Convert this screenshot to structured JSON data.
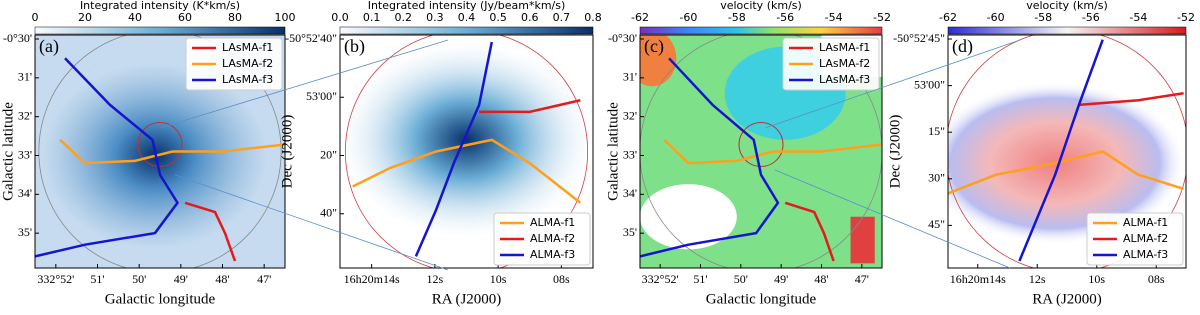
{
  "panels": [
    {
      "label": "(a)",
      "colorbar": {
        "title": "Integrated intensity (K*km/s)",
        "ticks": [
          "0",
          "20",
          "40",
          "60",
          "80",
          "100"
        ]
      },
      "xlabel": "Galactic longitude",
      "ylabel": "Galactic latitude",
      "xticks": [
        "332°52'",
        "51'",
        "50'",
        "49'",
        "48'",
        "47'"
      ],
      "yticks": [
        "-0°30'",
        "31'",
        "32'",
        "33'",
        "34'",
        "35'"
      ],
      "legend": [
        {
          "name": "LAsMA-f1",
          "color": "#e41a1c"
        },
        {
          "name": "LAsMA-f2",
          "color": "#ff9f1c"
        },
        {
          "name": "LAsMA-f3",
          "color": "#1515d0"
        }
      ]
    },
    {
      "label": "(b)",
      "colorbar": {
        "title": "Integrated intensity (Jy/beam*km/s)",
        "ticks": [
          "0.0",
          "0.1",
          "0.2",
          "0.3",
          "0.4",
          "0.5",
          "0.6",
          "0.7",
          "0.8"
        ]
      },
      "xlabel": "RA (J2000)",
      "ylabel": "Dec (J2000)",
      "xticks": [
        "16h20m14s",
        "12s",
        "10s",
        "08s"
      ],
      "yticks": [
        "-50°52'40\"",
        "53'00\"",
        "20\"",
        "40\""
      ],
      "legend": [
        {
          "name": "ALMA-f1",
          "color": "#ff9f1c"
        },
        {
          "name": "ALMA-f2",
          "color": "#e41a1c"
        },
        {
          "name": "ALMA-f3",
          "color": "#1515d0"
        }
      ]
    },
    {
      "label": "(c)",
      "colorbar": {
        "title": "velocity (km/s)",
        "ticks": [
          "-62",
          "-60",
          "-58",
          "-56",
          "-54",
          "-52"
        ]
      },
      "xlabel": "Galactic longitude",
      "ylabel": "Galactic latitude",
      "xticks": [
        "332°52'",
        "51'",
        "50'",
        "49'",
        "48'",
        "47'"
      ],
      "yticks": [
        "-0°30'",
        "31'",
        "32'",
        "33'",
        "34'",
        "35'"
      ],
      "legend": [
        {
          "name": "LAsMA-f1",
          "color": "#e41a1c"
        },
        {
          "name": "LAsMA-f2",
          "color": "#ff9f1c"
        },
        {
          "name": "LAsMA-f3",
          "color": "#1515d0"
        }
      ]
    },
    {
      "label": "(d)",
      "colorbar": {
        "title": "velocity (km/s)",
        "ticks": [
          "-62",
          "-60",
          "-58",
          "-56",
          "-54",
          "-52"
        ]
      },
      "xlabel": "RA (J2000)",
      "ylabel": "Dec (J2000)",
      "xticks": [
        "16h20m14s",
        "12s",
        "10s",
        "08s"
      ],
      "yticks": [
        "-50°52'45\"",
        "53'00\"",
        "15\"",
        "30\"",
        "45\""
      ],
      "legend": [
        {
          "name": "ALMA-f1",
          "color": "#ff9f1c"
        },
        {
          "name": "ALMA-f2",
          "color": "#e41a1c"
        },
        {
          "name": "ALMA-f3",
          "color": "#1515d0"
        }
      ]
    }
  ]
}
